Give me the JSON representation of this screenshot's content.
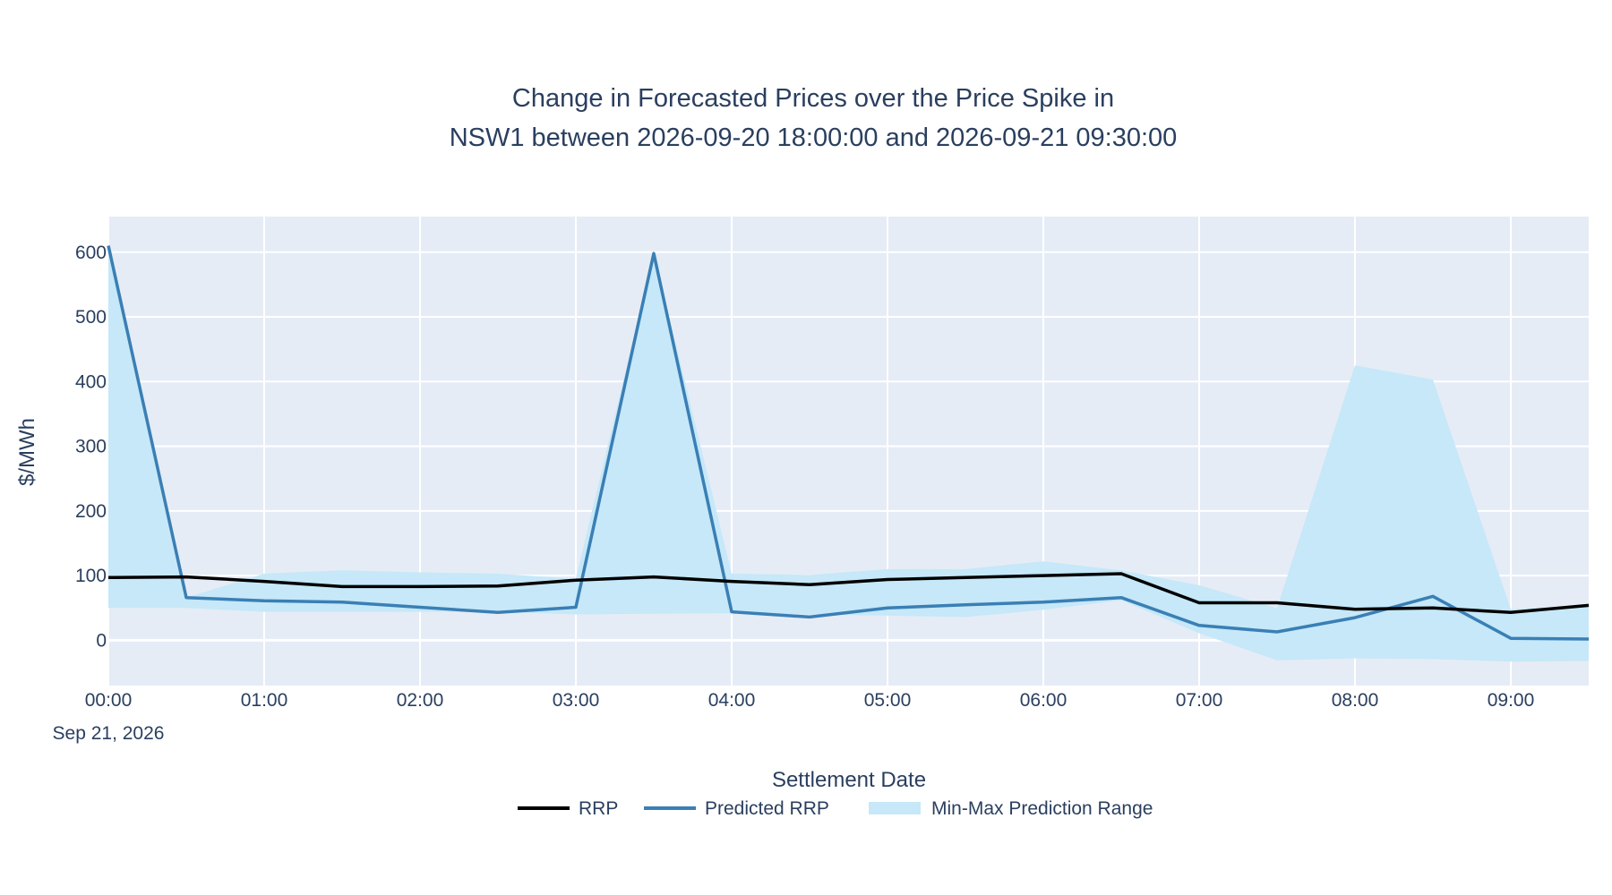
{
  "chart_data": {
    "type": "line",
    "title_line1": "Change in Forecasted Prices over the Price Spike in",
    "title_line2": "NSW1 between 2026-09-20 18:00:00 and 2026-09-21 09:30:00",
    "xlabel": "Settlement Date",
    "ylabel": "$/MWh",
    "date_label": "Sep 21, 2026",
    "x_ticks": [
      "00:00",
      "01:00",
      "02:00",
      "03:00",
      "04:00",
      "05:00",
      "06:00",
      "07:00",
      "08:00",
      "09:00"
    ],
    "y_ticks": [
      0,
      100,
      200,
      300,
      400,
      500,
      600
    ],
    "xlim": [
      "00:00",
      "09:30"
    ],
    "ylim": [
      -70,
      655
    ],
    "grid": true,
    "legend_position": "bottom-center",
    "colors": {
      "plot_bg": "#e5ecf6",
      "rrp": "#000000",
      "predicted": "#3a7fb5",
      "range": "#c6e8f8"
    },
    "x": [
      "00:00",
      "00:30",
      "01:00",
      "01:30",
      "02:00",
      "02:30",
      "03:00",
      "03:30",
      "04:00",
      "04:30",
      "05:00",
      "05:30",
      "06:00",
      "06:30",
      "07:00",
      "07:30",
      "08:00",
      "08:30",
      "09:00",
      "09:30"
    ],
    "series": [
      {
        "name": "RRP",
        "kind": "line",
        "values": [
          97,
          98,
          91,
          83,
          83,
          84,
          93,
          98,
          91,
          86,
          94,
          97,
          100,
          103,
          58,
          58,
          48,
          50,
          43,
          54
        ]
      },
      {
        "name": "Predicted RRP",
        "kind": "line",
        "values": [
          610,
          66,
          61,
          59,
          51,
          43,
          51,
          598,
          44,
          36,
          50,
          55,
          59,
          66,
          23,
          13,
          35,
          68,
          3,
          2
        ]
      },
      {
        "name": "Min-Max Prediction Range",
        "kind": "band",
        "min": [
          50,
          50,
          44,
          44,
          44,
          44,
          40,
          41,
          42,
          40,
          38,
          36,
          47,
          62,
          11,
          -31,
          -28,
          -29,
          -33,
          -32
        ],
        "max": [
          610,
          66,
          103,
          108,
          105,
          103,
          95,
          598,
          103,
          101,
          110,
          110,
          122,
          108,
          85,
          50,
          425,
          403,
          48,
          54
        ]
      }
    ]
  }
}
